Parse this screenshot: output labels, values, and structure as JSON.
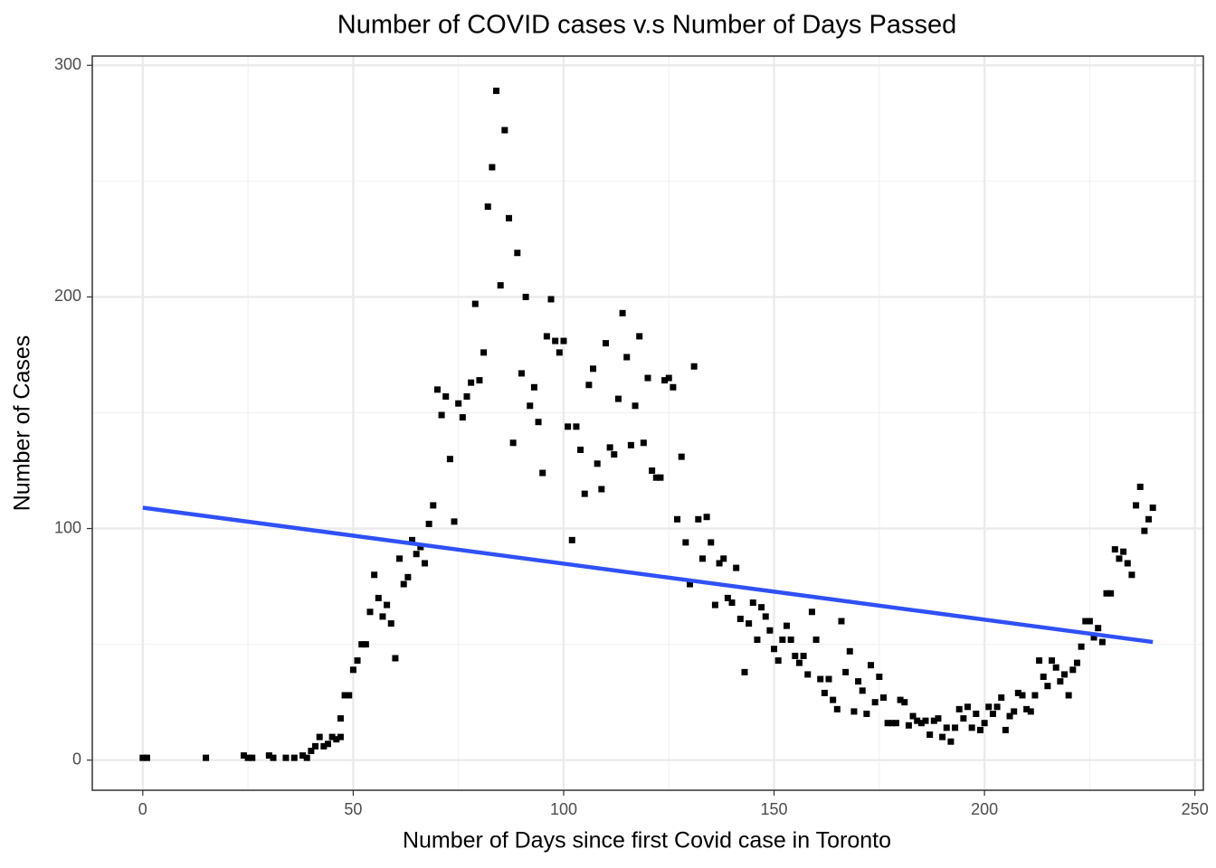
{
  "chart_data": {
    "type": "scatter",
    "title": "Number of COVID cases v.s Number of Days Passed",
    "x_label": "Number of Days since first Covid case in Toronto",
    "y_label": "Number of Cases",
    "xlim": [
      -12,
      252
    ],
    "ylim": [
      -13,
      304
    ],
    "xticks": [
      0,
      50,
      100,
      150,
      200,
      250
    ],
    "yticks": [
      0,
      100,
      200,
      300
    ],
    "grid": true,
    "color": "#000000",
    "x": [
      0,
      1,
      15,
      24,
      25,
      26,
      30,
      31,
      34,
      36,
      38,
      39,
      40,
      41,
      42,
      43,
      44,
      45,
      46,
      47,
      47,
      48,
      49,
      50,
      51,
      52,
      53,
      54,
      55,
      56,
      57,
      58,
      59,
      60,
      61,
      62,
      63,
      64,
      65,
      66,
      67,
      68,
      69,
      70,
      71,
      72,
      73,
      74,
      75,
      76,
      77,
      78,
      79,
      80,
      81,
      82,
      83,
      84,
      85,
      86,
      87,
      88,
      89,
      90,
      91,
      92,
      93,
      94,
      95,
      96,
      97,
      98,
      99,
      100,
      101,
      102,
      103,
      104,
      105,
      106,
      107,
      108,
      109,
      110,
      111,
      112,
      113,
      114,
      115,
      116,
      117,
      118,
      119,
      120,
      121,
      122,
      123,
      124,
      125,
      126,
      127,
      128,
      129,
      130,
      131,
      132,
      133,
      134,
      135,
      136,
      137,
      138,
      139,
      140,
      141,
      142,
      143,
      144,
      145,
      146,
      147,
      148,
      149,
      150,
      151,
      152,
      153,
      154,
      155,
      156,
      157,
      158,
      159,
      160,
      161,
      162,
      163,
      164,
      165,
      166,
      167,
      168,
      169,
      170,
      171,
      172,
      173,
      174,
      175,
      176,
      177,
      178,
      179,
      180,
      181,
      182,
      183,
      184,
      185,
      186,
      187,
      188,
      189,
      190,
      191,
      192,
      193,
      194,
      195,
      196,
      197,
      198,
      199,
      200,
      201,
      202,
      203,
      204,
      205,
      206,
      207,
      208,
      209,
      210,
      211,
      212,
      213,
      214,
      215,
      216,
      217,
      218,
      219,
      220,
      221,
      222,
      223,
      224,
      225,
      226,
      227,
      228,
      229,
      230,
      231,
      232,
      233,
      234,
      235,
      236,
      237,
      238,
      239,
      240
    ],
    "values": [
      1,
      1,
      1,
      2,
      1,
      1,
      2,
      1,
      1,
      1,
      2,
      1,
      4,
      6,
      10,
      6,
      7,
      10,
      9,
      10,
      18,
      28,
      28,
      39,
      43,
      50,
      50,
      64,
      80,
      70,
      62,
      67,
      59,
      44,
      87,
      76,
      79,
      95,
      89,
      92,
      85,
      102,
      110,
      160,
      149,
      157,
      130,
      103,
      154,
      148,
      157,
      163,
      197,
      164,
      176,
      239,
      256,
      289,
      205,
      272,
      234,
      137,
      219,
      167,
      200,
      153,
      161,
      146,
      124,
      183,
      199,
      181,
      176,
      181,
      144,
      95,
      144,
      134,
      115,
      162,
      169,
      128,
      117,
      180,
      135,
      132,
      156,
      193,
      174,
      136,
      153,
      183,
      137,
      165,
      125,
      122,
      122,
      164,
      165,
      161,
      104,
      131,
      94,
      76,
      170,
      104,
      87,
      105,
      94,
      67,
      85,
      87,
      70,
      68,
      83,
      61,
      38,
      59,
      68,
      52,
      66,
      62,
      56,
      48,
      43,
      52,
      58,
      52,
      45,
      42,
      45,
      37,
      64,
      52,
      35,
      29,
      35,
      26,
      22,
      60,
      38,
      47,
      21,
      34,
      30,
      20,
      41,
      25,
      36,
      27,
      16,
      16,
      16,
      26,
      25,
      15,
      19,
      17,
      16,
      17,
      11,
      17,
      18,
      10,
      14,
      8,
      14,
      22,
      18,
      23,
      14,
      20,
      13,
      16,
      23,
      20,
      23,
      27,
      13,
      19,
      21,
      29,
      28,
      22,
      21,
      28,
      43,
      36,
      32,
      43,
      40,
      34,
      37,
      28,
      39,
      42,
      49,
      60,
      60,
      53,
      57,
      51,
      72,
      72,
      91,
      87,
      90,
      85,
      80,
      110,
      118,
      99,
      104,
      109
    ],
    "fit": {
      "color": "#3050f8",
      "x": [
        0,
        240
      ],
      "values": [
        109,
        51
      ]
    }
  }
}
